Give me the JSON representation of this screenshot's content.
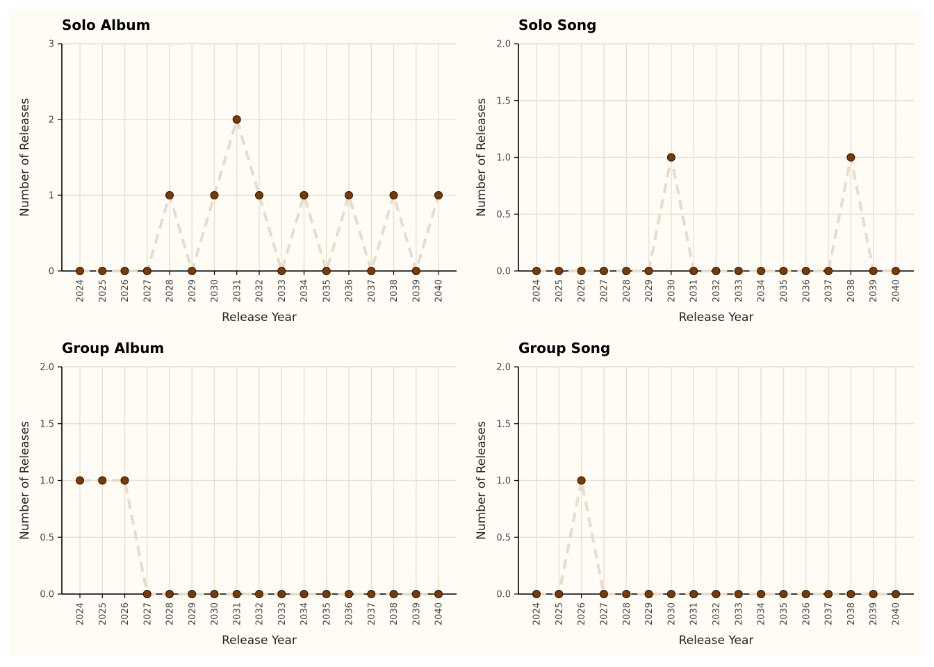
{
  "chart_data": [
    {
      "type": "line",
      "title": "Solo Album",
      "xlabel": "Release Year",
      "ylabel": "Number of Releases",
      "x": [
        2024,
        2025,
        2026,
        2027,
        2028,
        2029,
        2030,
        2031,
        2032,
        2033,
        2034,
        2035,
        2036,
        2037,
        2038,
        2039,
        2040
      ],
      "values": [
        0,
        0,
        0,
        0,
        1,
        0,
        1,
        2,
        1,
        0,
        1,
        0,
        1,
        0,
        1,
        0,
        1
      ],
      "ylim": [
        0,
        3
      ],
      "yticks": [
        "0",
        "1",
        "2",
        "3"
      ],
      "grid": true
    },
    {
      "type": "line",
      "title": "Solo Song",
      "xlabel": "Release Year",
      "ylabel": "Number of Releases",
      "x": [
        2024,
        2025,
        2026,
        2027,
        2028,
        2029,
        2030,
        2031,
        2032,
        2033,
        2034,
        2035,
        2036,
        2037,
        2038,
        2039,
        2040
      ],
      "values": [
        0,
        0,
        0,
        0,
        0,
        0,
        1,
        0,
        0,
        0,
        0,
        0,
        0,
        0,
        1,
        0,
        0
      ],
      "ylim": [
        0,
        2
      ],
      "yticks": [
        "0.0",
        "0.5",
        "1.0",
        "1.5",
        "2.0"
      ],
      "grid": true
    },
    {
      "type": "line",
      "title": "Group Album",
      "xlabel": "Release Year",
      "ylabel": "Number of Releases",
      "x": [
        2024,
        2025,
        2026,
        2027,
        2028,
        2029,
        2030,
        2031,
        2032,
        2033,
        2034,
        2035,
        2036,
        2037,
        2038,
        2039,
        2040
      ],
      "values": [
        1,
        1,
        1,
        0,
        0,
        0,
        0,
        0,
        0,
        0,
        0,
        0,
        0,
        0,
        0,
        0,
        0
      ],
      "ylim": [
        0,
        2
      ],
      "yticks": [
        "0.0",
        "0.5",
        "1.0",
        "1.5",
        "2.0"
      ],
      "grid": true
    },
    {
      "type": "line",
      "title": "Group Song",
      "xlabel": "Release Year",
      "ylabel": "Number of Releases",
      "x": [
        2024,
        2025,
        2026,
        2027,
        2028,
        2029,
        2030,
        2031,
        2032,
        2033,
        2034,
        2035,
        2036,
        2037,
        2038,
        2039,
        2040
      ],
      "values": [
        0,
        0,
        1,
        0,
        0,
        0,
        0,
        0,
        0,
        0,
        0,
        0,
        0,
        0,
        0,
        0,
        0
      ],
      "ylim": [
        0,
        2
      ],
      "yticks": [
        "0.0",
        "0.5",
        "1.0",
        "1.5",
        "2.0"
      ],
      "grid": true
    }
  ],
  "colors": {
    "background": "#fefcf4",
    "grid": "#e8e2d4",
    "line": "#e6dccb",
    "marker_fill": "#7a3a06",
    "marker_edge": "#2a1200",
    "axis": "#000000"
  }
}
